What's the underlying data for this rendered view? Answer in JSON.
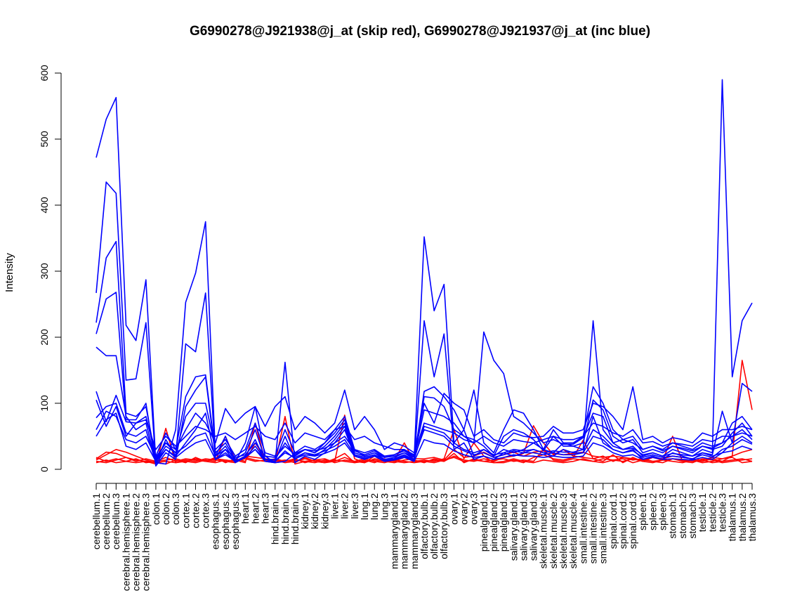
{
  "chart_data": {
    "type": "line",
    "title": "G6990278@J921938@j_at (skip red), G6990278@J921937@j_at (inc blue)",
    "xlabel": "",
    "ylabel": "Intensity",
    "ylim": [
      0,
      600
    ],
    "yticks": [
      0,
      100,
      200,
      300,
      400,
      500,
      600
    ],
    "grid": false,
    "legend": "none",
    "categories": [
      "cerebellum.1",
      "cerebellum.2",
      "cerebellum.3",
      "cerebral.hemisphere.1",
      "cerebral.hemisphere.2",
      "cerebral.hemisphere.3",
      "colon.1",
      "colon.2",
      "colon.3",
      "cortex.1",
      "cortex.2",
      "cortex.3",
      "esophagus.1",
      "esophagus.2",
      "esophagus.3",
      "heart.1",
      "heart.2",
      "heart.3",
      "hind.brain.1",
      "hind.brain.2",
      "hind.brain.3",
      "kidney.1",
      "kidney.2",
      "kidney.3",
      "liver.1",
      "liver.2",
      "liver.3",
      "lung.1",
      "lung.2",
      "lung.3",
      "mammarygland.1",
      "mammarygland.2",
      "mammarygland.3",
      "olfactory.bulb.1",
      "olfactory.bulb.2",
      "olfactory.bulb.3",
      "ovary.1",
      "ovary.2",
      "ovary.3",
      "pinealgland.1",
      "pinealgland.2",
      "pinealgland.3",
      "salivary.gland.1",
      "salivary.gland.2",
      "salivary.gland.3",
      "skeletal.muscle.1",
      "skeletal.muscle.2",
      "skeletal.muscle.3",
      "skeletal.muscle.4",
      "small.intestine.1",
      "small.intestine.2",
      "small.intestine.3",
      "spinal.cord.1",
      "spinal.cord.2",
      "spinal.cord.3",
      "spleen.1",
      "spleen.2",
      "spleen.3",
      "stomach.1",
      "stomach.2",
      "stomach.3",
      "testicle.1",
      "testicle.2",
      "testicle.3",
      "thalamus.1",
      "thalamus.2",
      "thalamus.3"
    ],
    "series_colors": {
      "skip": "#ff0000",
      "inc": "#0000ff"
    },
    "series": [
      {
        "color": "#ff0000",
        "values": [
          18,
          12,
          16,
          12,
          10,
          12,
          8,
          62,
          10,
          12,
          10,
          14,
          12,
          50,
          14,
          10,
          70,
          12,
          10,
          80,
          8,
          12,
          10,
          14,
          12,
          82,
          16,
          10,
          20,
          12,
          14,
          40,
          12,
          14,
          12,
          16,
          60,
          16,
          40,
          20,
          10,
          10,
          14,
          10,
          18,
          22,
          16,
          14,
          18,
          44,
          16,
          12,
          22,
          10,
          18,
          12,
          18,
          14,
          50,
          12,
          14,
          10,
          12,
          16,
          18,
          10,
          12
        ]
      },
      {
        "color": "#ff0000",
        "values": [
          10,
          14,
          10,
          12,
          16,
          10,
          12,
          18,
          12,
          16,
          14,
          12,
          18,
          10,
          16,
          12,
          40,
          16,
          12,
          14,
          10,
          18,
          12,
          10,
          16,
          24,
          10,
          14,
          10,
          16,
          12,
          18,
          14,
          10,
          16,
          12,
          24,
          10,
          16,
          12,
          14,
          16,
          12,
          14,
          12,
          30,
          14,
          12,
          16,
          14,
          12,
          16,
          14,
          16,
          10,
          14,
          12,
          10,
          16,
          14,
          12,
          14,
          10,
          12,
          14,
          16,
          12
        ]
      },
      {
        "color": "#ff0000",
        "values": [
          14,
          22,
          30,
          26,
          20,
          14,
          10,
          12,
          10,
          14,
          12,
          16,
          14,
          12,
          10,
          18,
          14,
          12,
          16,
          12,
          14,
          12,
          14,
          16,
          10,
          14,
          12,
          16,
          12,
          10,
          14,
          12,
          10,
          12,
          14,
          12,
          20,
          14,
          12,
          16,
          12,
          18,
          20,
          24,
          66,
          40,
          22,
          30,
          20,
          18,
          16,
          20,
          12,
          18,
          14,
          16,
          12,
          14,
          12,
          10,
          14,
          12,
          16,
          12,
          20,
          165,
          90
        ]
      },
      {
        "color": "#ff0000",
        "values": [
          12,
          10,
          14,
          18,
          12,
          16,
          12,
          14,
          16,
          12,
          16,
          12,
          10,
          14,
          12,
          16,
          12,
          14,
          10,
          12,
          16,
          10,
          14,
          12,
          14,
          12,
          10,
          12,
          14,
          12,
          10,
          14,
          16,
          16,
          18,
          14,
          30,
          18,
          20,
          26,
          18,
          22,
          26,
          20,
          26,
          28,
          24,
          22,
          24,
          26,
          20,
          18,
          20,
          18,
          16,
          14,
          18,
          16,
          20,
          18,
          16,
          14,
          18,
          16,
          20,
          26,
          30
        ]
      },
      {
        "color": "#ff0000",
        "values": [
          16,
          26,
          24,
          18,
          14,
          12,
          10,
          8,
          14,
          10,
          18,
          12,
          16,
          14,
          12,
          20,
          18,
          16,
          14,
          10,
          12,
          16,
          12,
          10,
          12,
          18,
          12,
          10,
          16,
          14,
          12,
          10,
          12,
          12,
          10,
          14,
          18,
          12,
          14,
          12,
          10,
          12,
          16,
          12,
          10,
          14,
          12,
          10,
          12,
          16,
          12,
          10,
          14,
          12,
          16,
          12,
          10,
          14,
          16,
          12,
          10,
          16,
          14,
          10,
          12,
          14,
          16
        ]
      },
      {
        "color": "#0000ff",
        "values": [
          472,
          530,
          563,
          218,
          195,
          287,
          10,
          8,
          60,
          253,
          297,
          375,
          20,
          50,
          12,
          40,
          95,
          20,
          10,
          12,
          24,
          30,
          25,
          40,
          60,
          80,
          30,
          20,
          25,
          18,
          22,
          28,
          18,
          352,
          240,
          280,
          40,
          60,
          20,
          30,
          20,
          30,
          25,
          30,
          40,
          30,
          25,
          40,
          35,
          30,
          225,
          60,
          40,
          30,
          35,
          20,
          25,
          20,
          30,
          25,
          20,
          30,
          25,
          590,
          140,
          225,
          252
        ]
      },
      {
        "color": "#0000ff",
        "values": [
          267,
          435,
          418,
          135,
          137,
          222,
          8,
          30,
          20,
          190,
          178,
          267,
          15,
          30,
          10,
          18,
          30,
          12,
          10,
          162,
          10,
          20,
          15,
          25,
          40,
          60,
          20,
          15,
          20,
          12,
          15,
          20,
          12,
          225,
          140,
          205,
          30,
          40,
          15,
          20,
          15,
          25,
          20,
          25,
          30,
          25,
          20,
          30,
          25,
          25,
          80,
          40,
          30,
          25,
          30,
          15,
          20,
          15,
          25,
          20,
          15,
          25,
          20,
          25,
          40,
          130,
          118
        ]
      },
      {
        "color": "#0000ff",
        "values": [
          222,
          320,
          345,
          85,
          80,
          95,
          15,
          40,
          30,
          110,
          140,
          143,
          25,
          40,
          15,
          25,
          60,
          15,
          15,
          40,
          20,
          30,
          25,
          35,
          50,
          70,
          25,
          20,
          25,
          15,
          18,
          25,
          15,
          118,
          125,
          110,
          90,
          60,
          120,
          40,
          25,
          60,
          90,
          85,
          60,
          30,
          60,
          40,
          40,
          50,
          125,
          100,
          60,
          45,
          50,
          30,
          35,
          30,
          40,
          35,
          30,
          40,
          35,
          40,
          70,
          80,
          60
        ]
      },
      {
        "color": "#0000ff",
        "values": [
          205,
          258,
          268,
          75,
          75,
          100,
          5,
          25,
          15,
          95,
          120,
          140,
          20,
          35,
          12,
          20,
          45,
          12,
          12,
          50,
          15,
          25,
          20,
          30,
          45,
          65,
          22,
          18,
          22,
          14,
          16,
          22,
          14,
          110,
          108,
          95,
          60,
          50,
          45,
          35,
          20,
          50,
          60,
          55,
          45,
          28,
          50,
          35,
          35,
          40,
          105,
          90,
          50,
          40,
          45,
          25,
          30,
          25,
          35,
          30,
          25,
          35,
          30,
          35,
          55,
          70,
          50
        ]
      },
      {
        "color": "#0000ff",
        "values": [
          185,
          172,
          172,
          80,
          60,
          70,
          12,
          35,
          25,
          80,
          100,
          100,
          30,
          45,
          20,
          30,
          70,
          25,
          20,
          60,
          25,
          35,
          30,
          40,
          55,
          75,
          30,
          25,
          30,
          20,
          22,
          30,
          20,
          90,
          85,
          80,
          70,
          50,
          40,
          208,
          165,
          145,
          80,
          70,
          55,
          40,
          45,
          38,
          38,
          48,
          85,
          80,
          40,
          45,
          40,
          30,
          35,
          28,
          35,
          32,
          28,
          35,
          32,
          40,
          50,
          60,
          45
        ]
      },
      {
        "color": "#0000ff",
        "values": [
          118,
          72,
          112,
          72,
          70,
          80,
          20,
          55,
          30,
          60,
          85,
          70,
          40,
          92,
          70,
          85,
          95,
          65,
          95,
          110,
          60,
          80,
          70,
          55,
          70,
          120,
          60,
          80,
          60,
          30,
          40,
          35,
          25,
          100,
          70,
          115,
          100,
          90,
          50,
          60,
          45,
          40,
          55,
          50,
          48,
          50,
          65,
          55,
          55,
          60,
          100,
          95,
          80,
          60,
          125,
          45,
          50,
          40,
          48,
          45,
          40,
          55,
          50,
          60,
          60,
          65,
          60
        ]
      },
      {
        "color": "#0000ff",
        "values": [
          105,
          65,
          95,
          50,
          70,
          75,
          30,
          50,
          35,
          50,
          65,
          60,
          50,
          55,
          45,
          55,
          65,
          50,
          45,
          70,
          40,
          55,
          50,
          45,
          60,
          65,
          45,
          50,
          40,
          35,
          30,
          30,
          22,
          70,
          65,
          60,
          55,
          45,
          40,
          50,
          40,
          35,
          45,
          42,
          40,
          45,
          50,
          45,
          45,
          50,
          70,
          65,
          55,
          50,
          60,
          40,
          42,
          35,
          40,
          38,
          35,
          45,
          42,
          50,
          50,
          55,
          50
        ]
      },
      {
        "color": "#0000ff",
        "values": [
          78,
          95,
          100,
          55,
          50,
          60,
          10,
          45,
          20,
          40,
          60,
          85,
          15,
          25,
          12,
          18,
          35,
          15,
          12,
          25,
          18,
          25,
          22,
          28,
          35,
          45,
          22,
          18,
          22,
          15,
          16,
          20,
          15,
          65,
          60,
          55,
          40,
          30,
          25,
          30,
          22,
          25,
          30,
          28,
          30,
          25,
          28,
          26,
          26,
          30,
          60,
          50,
          35,
          30,
          32,
          22,
          25,
          20,
          24,
          22,
          20,
          25,
          22,
          88,
          40,
          50,
          40
        ]
      },
      {
        "color": "#0000ff",
        "values": [
          60,
          88,
          80,
          45,
          40,
          50,
          18,
          40,
          25,
          35,
          50,
          55,
          20,
          30,
          18,
          22,
          40,
          20,
          18,
          35,
          22,
          30,
          28,
          32,
          40,
          50,
          28,
          22,
          28,
          18,
          20,
          25,
          18,
          60,
          55,
          50,
          35,
          28,
          22,
          25,
          18,
          22,
          28,
          25,
          25,
          22,
          25,
          22,
          22,
          25,
          50,
          45,
          30,
          25,
          28,
          18,
          22,
          18,
          20,
          18,
          16,
          22,
          18,
          30,
          35,
          45,
          38
        ]
      },
      {
        "color": "#0000ff",
        "values": [
          50,
          75,
          85,
          35,
          30,
          40,
          12,
          30,
          18,
          30,
          40,
          45,
          15,
          22,
          12,
          18,
          30,
          15,
          12,
          28,
          16,
          22,
          20,
          24,
          30,
          40,
          20,
          16,
          20,
          12,
          14,
          18,
          12,
          45,
          40,
          38,
          28,
          22,
          18,
          20,
          15,
          18,
          22,
          20,
          20,
          18,
          20,
          18,
          18,
          20,
          40,
          35,
          25,
          20,
          22,
          15,
          18,
          15,
          16,
          15,
          14,
          18,
          15,
          25,
          28,
          35,
          30
        ]
      }
    ]
  }
}
